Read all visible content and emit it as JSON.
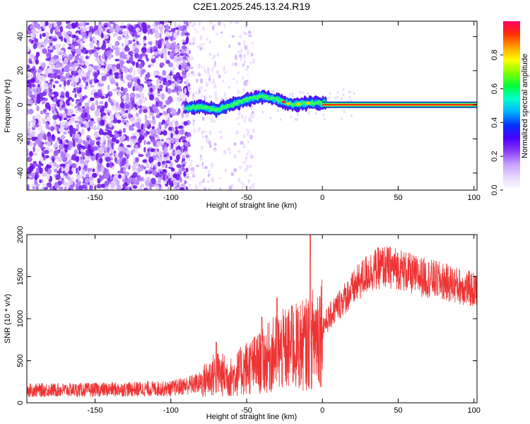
{
  "title": "C2E1.2025.245.13.24.R19",
  "chart_data": [
    {
      "type": "heatmap",
      "xlabel": "Height of straight line (km)",
      "ylabel": "Frequency (Hz)",
      "xlim": [
        -195,
        102
      ],
      "ylim": [
        -50,
        49
      ],
      "xticks": [
        -150,
        -100,
        -50,
        0,
        50,
        100
      ],
      "yticks": [
        -40,
        -20,
        0,
        20,
        40
      ],
      "colorbar": {
        "label": "Normalized spectral amplitude",
        "range": [
          0,
          1
        ],
        "ticks": [
          "0.0",
          "0.2",
          "0.4",
          "0.6",
          "0.8"
        ],
        "colors": [
          "#ffffff",
          "#e8d8ff",
          "#c7a0ff",
          "#8a3cf5",
          "#4a00ff",
          "#0033ff",
          "#00b0ff",
          "#00ffd0",
          "#00ff40",
          "#80ff00",
          "#ffff00",
          "#ffa000",
          "#ff3000",
          "#ff0060"
        ]
      },
      "features": {
        "noise_region_end_km": -88,
        "sparse_region_end_km": -50,
        "signal_track": [
          {
            "x": -90,
            "y": -2
          },
          {
            "x": -80,
            "y": -1
          },
          {
            "x": -70,
            "y": -3
          },
          {
            "x": -60,
            "y": 0
          },
          {
            "x": -50,
            "y": 3
          },
          {
            "x": -40,
            "y": 5
          },
          {
            "x": -30,
            "y": 3
          },
          {
            "x": -20,
            "y": 0
          },
          {
            "x": -10,
            "y": 1
          },
          {
            "x": 0,
            "y": 1
          },
          {
            "x": 102,
            "y": 0
          }
        ]
      }
    },
    {
      "type": "line",
      "xlabel": "Height of straight line (km)",
      "ylabel": "SNR (10 * v/v)",
      "xlim": [
        -195,
        102
      ],
      "ylim": [
        0,
        2000
      ],
      "xticks": [
        -150,
        -100,
        -50,
        0,
        50,
        100
      ],
      "yticks": [
        0,
        500,
        1000,
        1500,
        2000
      ],
      "color": "#ee3333",
      "envelope": [
        {
          "x": -195,
          "y": 150
        },
        {
          "x": -150,
          "y": 155
        },
        {
          "x": -100,
          "y": 170
        },
        {
          "x": -80,
          "y": 240
        },
        {
          "x": -70,
          "y": 350
        },
        {
          "x": -60,
          "y": 300
        },
        {
          "x": -50,
          "y": 420
        },
        {
          "x": -40,
          "y": 480
        },
        {
          "x": -30,
          "y": 600
        },
        {
          "x": -20,
          "y": 650
        },
        {
          "x": -10,
          "y": 700
        },
        {
          "x": 0,
          "y": 900
        },
        {
          "x": 10,
          "y": 1150
        },
        {
          "x": 20,
          "y": 1350
        },
        {
          "x": 30,
          "y": 1550
        },
        {
          "x": 40,
          "y": 1620
        },
        {
          "x": 50,
          "y": 1600
        },
        {
          "x": 60,
          "y": 1520
        },
        {
          "x": 70,
          "y": 1480
        },
        {
          "x": 80,
          "y": 1440
        },
        {
          "x": 90,
          "y": 1390
        },
        {
          "x": 102,
          "y": 1330
        }
      ],
      "spikes": [
        {
          "x": -8,
          "y": 2000
        },
        {
          "x": -30,
          "y": 1250
        },
        {
          "x": -20,
          "y": 1150
        },
        {
          "x": -70,
          "y": 720
        },
        {
          "x": -40,
          "y": 1020
        }
      ]
    }
  ]
}
